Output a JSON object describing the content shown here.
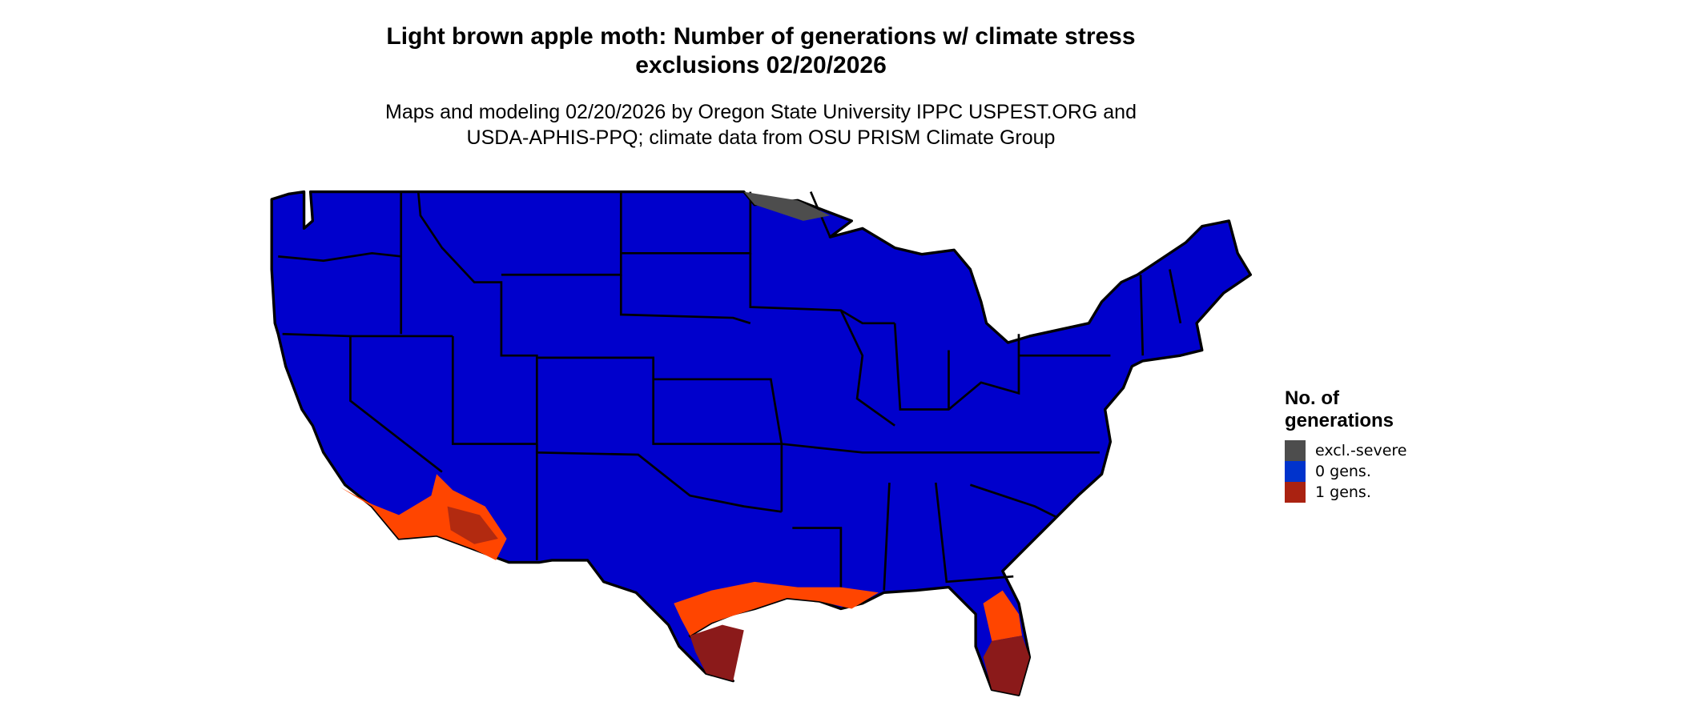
{
  "title": {
    "line1": "Light brown apple moth: Number of generations w/ climate stress",
    "line2": "exclusions 02/20/2026"
  },
  "subtitle": {
    "line1": "Maps and modeling 02/20/2026 by Oregon State University IPPC USPEST.ORG and",
    "line2": "USDA-APHIS-PPQ; climate data from OSU PRISM Climate Group"
  },
  "legend": {
    "title_line1": "No. of",
    "title_line2": "generations",
    "items": [
      {
        "label": "excl.-severe",
        "color": "#4d4d4d"
      },
      {
        "label": "0 gens.",
        "color": "#0033cc"
      },
      {
        "label": "1 gens.",
        "color": "#aa2211"
      }
    ]
  },
  "map_colors": {
    "base": "#0000cc",
    "excluded": "#4d4d4d",
    "low": "#ff4500",
    "mid": "#cc2200",
    "high": "#8b1a1a",
    "borders": "#000000"
  }
}
